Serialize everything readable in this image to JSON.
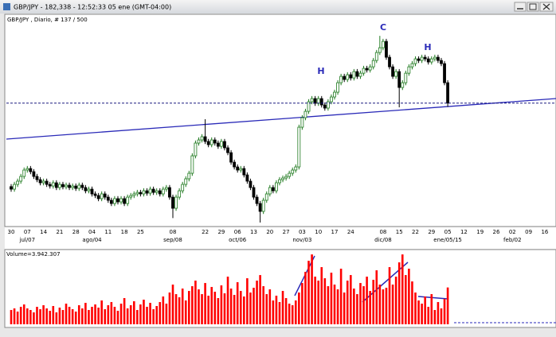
{
  "window_title": "GBP/JPY - 182,338 - 12:52:33  05 ene (GMT-04:00)",
  "chart_data": {
    "type": "candlestick",
    "subtitle": "GBP/JPY , Diario, # 137 / 500",
    "annotations": [
      "H",
      "C",
      "H"
    ],
    "volume_label": "Volume=3.942.307",
    "categories": [
      "30",
      "07",
      "14",
      "21",
      "28",
      "04",
      "11",
      "18",
      "25",
      null,
      "08",
      null,
      "22",
      "29",
      "06",
      "13",
      "20",
      "27",
      "03",
      "10",
      "17",
      "24",
      null,
      "08",
      "15",
      "22",
      "29",
      "05",
      "12",
      "19",
      "26",
      "02",
      "09",
      "16"
    ],
    "category_months": [
      null,
      "jul/07",
      null,
      null,
      null,
      "ago/04",
      null,
      null,
      null,
      null,
      "sep/08",
      null,
      null,
      null,
      "oct/06",
      null,
      null,
      null,
      "nov/03",
      null,
      null,
      null,
      null,
      "dic/08",
      null,
      null,
      null,
      "ene/05/15",
      null,
      null,
      null,
      "feb/02",
      null,
      null
    ],
    "ylim": [
      167.8,
      192.8
    ],
    "volume_ylim": [
      0,
      8000000
    ],
    "up_color": "#1f7a1f",
    "down_color": "#000000",
    "volume_color": "#ff0000",
    "grid": false,
    "ohlc": [
      [
        172.5,
        172.8,
        171.9,
        172.2
      ],
      [
        172.2,
        173.06,
        171.9,
        172.76
      ],
      [
        172.76,
        173.44,
        172.46,
        173.14
      ],
      [
        173.14,
        174.0,
        172.84,
        173.7
      ],
      [
        173.7,
        174.75,
        173.4,
        174.45
      ],
      [
        174.45,
        174.93,
        174.15,
        174.63
      ],
      [
        174.63,
        174.93,
        173.96,
        174.26
      ],
      [
        174.26,
        174.56,
        173.4,
        173.7
      ],
      [
        173.7,
        174.0,
        173.02,
        173.32
      ],
      [
        173.32,
        173.62,
        172.65,
        172.95
      ],
      [
        172.95,
        173.44,
        172.65,
        173.14
      ],
      [
        173.14,
        173.44,
        172.46,
        172.76
      ],
      [
        172.76,
        173.06,
        172.27,
        172.57
      ],
      [
        172.57,
        173.25,
        172.27,
        172.95
      ],
      [
        172.95,
        173.25,
        172.09,
        172.39
      ],
      [
        172.39,
        173.06,
        172.09,
        172.76
      ],
      [
        172.76,
        173.06,
        172.18,
        172.48
      ],
      [
        172.48,
        172.97,
        172.18,
        172.67
      ],
      [
        172.67,
        172.97,
        172.09,
        172.39
      ],
      [
        172.39,
        172.87,
        172.09,
        172.57
      ],
      [
        172.57,
        172.87,
        171.99,
        172.29
      ],
      [
        172.29,
        172.97,
        171.99,
        172.67
      ],
      [
        172.67,
        172.97,
        172.09,
        172.39
      ],
      [
        172.39,
        172.69,
        171.71,
        172.01
      ],
      [
        172.01,
        172.5,
        171.71,
        172.2
      ],
      [
        172.2,
        172.5,
        171.34,
        171.64
      ],
      [
        171.64,
        171.94,
        171.15,
        171.45
      ],
      [
        171.45,
        171.75,
        170.78,
        171.08
      ],
      [
        171.08,
        171.94,
        170.78,
        171.64
      ],
      [
        171.64,
        171.94,
        170.96,
        171.26
      ],
      [
        171.26,
        171.56,
        170.59,
        170.89
      ],
      [
        170.89,
        171.19,
        170.21,
        170.51
      ],
      [
        170.51,
        171.38,
        170.21,
        171.08
      ],
      [
        171.08,
        171.38,
        170.4,
        170.7
      ],
      [
        170.7,
        171.38,
        170.4,
        171.08
      ],
      [
        171.08,
        171.38,
        170.21,
        170.51
      ],
      [
        170.51,
        171.56,
        170.21,
        171.26
      ],
      [
        171.26,
        171.75,
        170.96,
        171.45
      ],
      [
        171.45,
        171.94,
        171.15,
        171.64
      ],
      [
        171.64,
        172.12,
        171.34,
        171.82
      ],
      [
        171.82,
        172.12,
        171.34,
        171.64
      ],
      [
        171.64,
        172.31,
        171.34,
        172.01
      ],
      [
        172.01,
        172.31,
        171.43,
        171.73
      ],
      [
        171.73,
        172.5,
        171.43,
        172.2
      ],
      [
        172.2,
        172.5,
        171.52,
        171.82
      ],
      [
        171.82,
        172.31,
        171.52,
        172.01
      ],
      [
        172.01,
        172.31,
        171.34,
        171.64
      ],
      [
        171.64,
        172.5,
        171.34,
        172.2
      ],
      [
        172.2,
        172.69,
        171.9,
        172.39
      ],
      [
        172.39,
        172.69,
        170.96,
        171.26
      ],
      [
        171.26,
        171.56,
        168.8,
        169.95
      ],
      [
        169.95,
        171.56,
        169.65,
        171.26
      ],
      [
        171.26,
        172.31,
        170.96,
        172.01
      ],
      [
        172.01,
        173.06,
        171.71,
        172.76
      ],
      [
        172.76,
        173.72,
        172.46,
        173.42
      ],
      [
        173.42,
        174.37,
        173.12,
        174.07
      ],
      [
        174.07,
        176.43,
        173.77,
        176.13
      ],
      [
        176.13,
        177.93,
        175.83,
        177.63
      ],
      [
        177.63,
        178.3,
        177.33,
        178.0
      ],
      [
        178.0,
        178.68,
        177.7,
        178.38
      ],
      [
        178.38,
        180.44,
        177.52,
        177.82
      ],
      [
        177.82,
        178.12,
        177.14,
        177.44
      ],
      [
        177.44,
        178.3,
        177.14,
        178.0
      ],
      [
        178.0,
        178.3,
        177.33,
        177.63
      ],
      [
        177.63,
        177.93,
        176.95,
        177.25
      ],
      [
        177.25,
        178.12,
        176.95,
        177.82
      ],
      [
        177.82,
        178.12,
        176.77,
        177.07
      ],
      [
        177.07,
        177.37,
        176.2,
        176.5
      ],
      [
        176.5,
        176.8,
        175.08,
        175.38
      ],
      [
        175.38,
        175.68,
        174.52,
        174.82
      ],
      [
        174.82,
        175.12,
        174.15,
        174.45
      ],
      [
        174.45,
        174.93,
        174.15,
        174.63
      ],
      [
        174.63,
        174.93,
        173.58,
        173.88
      ],
      [
        173.88,
        174.18,
        172.84,
        173.14
      ],
      [
        173.14,
        173.44,
        172.09,
        172.39
      ],
      [
        172.39,
        172.69,
        170.96,
        171.26
      ],
      [
        171.26,
        171.56,
        170.21,
        170.51
      ],
      [
        170.51,
        170.81,
        168.27,
        169.58
      ],
      [
        169.58,
        171.19,
        169.28,
        170.89
      ],
      [
        170.89,
        171.94,
        170.59,
        171.64
      ],
      [
        171.64,
        172.69,
        171.34,
        172.39
      ],
      [
        172.39,
        172.69,
        171.71,
        172.01
      ],
      [
        172.01,
        173.25,
        171.71,
        172.95
      ],
      [
        172.95,
        173.62,
        172.65,
        173.32
      ],
      [
        173.32,
        173.81,
        173.02,
        173.51
      ],
      [
        173.51,
        174.0,
        173.21,
        173.7
      ],
      [
        173.7,
        174.37,
        173.4,
        174.07
      ],
      [
        174.07,
        174.75,
        173.77,
        174.45
      ],
      [
        174.45,
        175.12,
        174.15,
        174.82
      ],
      [
        174.82,
        179.8,
        174.52,
        179.5
      ],
      [
        179.5,
        180.92,
        179.2,
        180.62
      ],
      [
        180.62,
        181.67,
        180.32,
        181.37
      ],
      [
        181.37,
        182.8,
        181.07,
        182.5
      ],
      [
        182.5,
        183.17,
        182.2,
        182.87
      ],
      [
        182.87,
        183.17,
        182.01,
        182.31
      ],
      [
        182.31,
        183.17,
        182.01,
        182.87
      ],
      [
        182.87,
        183.17,
        181.82,
        182.12
      ],
      [
        182.12,
        182.42,
        181.45,
        181.75
      ],
      [
        181.75,
        182.8,
        181.45,
        182.5
      ],
      [
        182.5,
        183.36,
        182.2,
        183.06
      ],
      [
        183.06,
        183.92,
        182.76,
        183.62
      ],
      [
        183.62,
        185.04,
        183.32,
        184.74
      ],
      [
        184.74,
        185.79,
        184.44,
        185.49
      ],
      [
        185.49,
        185.79,
        184.82,
        185.12
      ],
      [
        185.12,
        185.98,
        184.82,
        185.68
      ],
      [
        185.68,
        185.98,
        185.0,
        185.3
      ],
      [
        185.3,
        186.35,
        185.0,
        186.05
      ],
      [
        186.05,
        186.35,
        185.19,
        185.49
      ],
      [
        185.49,
        186.16,
        185.19,
        185.86
      ],
      [
        185.86,
        186.73,
        185.56,
        186.43
      ],
      [
        186.43,
        186.73,
        185.94,
        186.24
      ],
      [
        186.24,
        186.91,
        185.94,
        186.61
      ],
      [
        186.61,
        187.66,
        186.31,
        187.36
      ],
      [
        187.36,
        188.6,
        187.06,
        188.3
      ],
      [
        188.3,
        190.26,
        188.0,
        188.86
      ],
      [
        188.86,
        189.91,
        188.56,
        189.61
      ],
      [
        189.61,
        189.91,
        187.44,
        187.74
      ],
      [
        187.74,
        188.04,
        186.31,
        186.61
      ],
      [
        186.61,
        186.91,
        185.19,
        185.49
      ],
      [
        185.49,
        186.35,
        185.19,
        186.05
      ],
      [
        186.05,
        186.35,
        181.84,
        184.18
      ],
      [
        184.18,
        185.04,
        183.88,
        184.74
      ],
      [
        184.74,
        186.16,
        184.44,
        185.86
      ],
      [
        185.86,
        186.91,
        185.56,
        186.61
      ],
      [
        186.61,
        187.29,
        186.31,
        186.99
      ],
      [
        186.99,
        187.85,
        186.69,
        187.55
      ],
      [
        187.55,
        187.85,
        187.06,
        187.36
      ],
      [
        187.36,
        188.04,
        187.06,
        187.74
      ],
      [
        187.74,
        188.04,
        187.25,
        187.55
      ],
      [
        187.55,
        187.85,
        186.88,
        187.18
      ],
      [
        187.18,
        187.85,
        186.88,
        187.55
      ],
      [
        187.55,
        188.04,
        187.25,
        187.74
      ],
      [
        187.74,
        188.04,
        187.06,
        187.36
      ],
      [
        187.36,
        187.66,
        186.69,
        186.99
      ],
      [
        186.99,
        187.29,
        184.44,
        184.74
      ],
      [
        184.74,
        185.04,
        181.9,
        182.34
      ]
    ],
    "volume": [
      1530000,
      1700000,
      1360000,
      1870000,
      2125000,
      1700000,
      1530000,
      1275000,
      1870000,
      1615000,
      2040000,
      1700000,
      1445000,
      1955000,
      1275000,
      1785000,
      1530000,
      2210000,
      1870000,
      1615000,
      1360000,
      2040000,
      1700000,
      2295000,
      1530000,
      1870000,
      2125000,
      1785000,
      2550000,
      1615000,
      2040000,
      2380000,
      1870000,
      1445000,
      2210000,
      2805000,
      1700000,
      2040000,
      2465000,
      1530000,
      2125000,
      2635000,
      1870000,
      2295000,
      1615000,
      1955000,
      2380000,
      2975000,
      2210000,
      3400000,
      4250000,
      3230000,
      2890000,
      3825000,
      2550000,
      3570000,
      4080000,
      4675000,
      3740000,
      3230000,
      4420000,
      3060000,
      3995000,
      3485000,
      2805000,
      4165000,
      3315000,
      5100000,
      3825000,
      3145000,
      4505000,
      3570000,
      2975000,
      4930000,
      3400000,
      3910000,
      4675000,
      5270000,
      4080000,
      3230000,
      3740000,
      2550000,
      3060000,
      2380000,
      3570000,
      2805000,
      2210000,
      2040000,
      2550000,
      3400000,
      4420000,
      5610000,
      6800000,
      7480000,
      5100000,
      4675000,
      6120000,
      4930000,
      4080000,
      5525000,
      4250000,
      3740000,
      5950000,
      3400000,
      4675000,
      5270000,
      3825000,
      3230000,
      4420000,
      4080000,
      5100000,
      3570000,
      4760000,
      5780000,
      4250000,
      3740000,
      3910000,
      6120000,
      4250000,
      5100000,
      6630000,
      7480000,
      5270000,
      5950000,
      4590000,
      3400000,
      2550000,
      2210000,
      2975000,
      1870000,
      3230000,
      1530000,
      2380000,
      1700000,
      2720000,
      3942307
    ]
  }
}
